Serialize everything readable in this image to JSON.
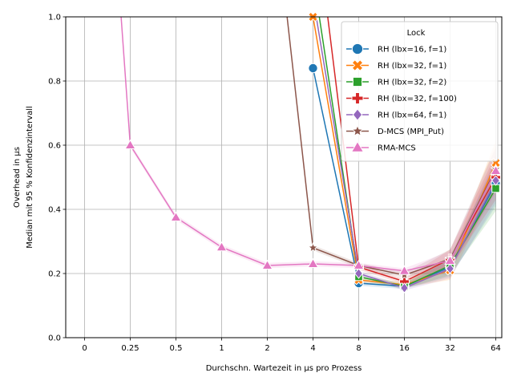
{
  "chart_data": {
    "type": "line",
    "title": "",
    "xlabel": "Durchschn. Wartezeit in µs pro Prozess",
    "ylabel_line1": "Overhead in µs",
    "ylabel_line2": "Median mit 95 % Konfidenzintervall",
    "categories": [
      "0",
      "0.25",
      "0.5",
      "1",
      "2",
      "4",
      "8",
      "16",
      "32",
      "64"
    ],
    "yticks": [
      "0.0",
      "0.2",
      "0.4",
      "0.6",
      "0.8",
      "1.0"
    ],
    "ylim": [
      0,
      1
    ],
    "grid": true,
    "legend_title": "Lock",
    "legend_placement": "top-right",
    "series": [
      {
        "name": "RH (lbx=16, f=1)",
        "color": "#1f77b4",
        "marker": "circle",
        "points": [
          [
            4,
            0.84
          ],
          [
            8,
            0.17
          ],
          [
            16,
            0.16
          ],
          [
            32,
            0.22
          ],
          [
            64,
            0.48
          ]
        ]
      },
      {
        "name": "RH (lbx=32, f=1)",
        "color": "#ff7f0e",
        "marker": "x",
        "points": [
          [
            4,
            1.0
          ],
          [
            8,
            0.18
          ],
          [
            16,
            0.165
          ],
          [
            32,
            0.21
          ],
          [
            64,
            0.545
          ]
        ]
      },
      {
        "name": "RH (lbx=32, f=2)",
        "color": "#2ca02c",
        "marker": "square",
        "points": [
          [
            4.4,
            1.0
          ],
          [
            8,
            0.19
          ],
          [
            16,
            0.16
          ],
          [
            32,
            0.225
          ],
          [
            64,
            0.465
          ]
        ]
      },
      {
        "name": "RH (lbx=32, f=100)",
        "color": "#d62728",
        "marker": "plus",
        "points": [
          [
            5.0,
            1.0
          ],
          [
            8,
            0.22
          ],
          [
            16,
            0.175
          ],
          [
            32,
            0.245
          ],
          [
            64,
            0.5
          ]
        ]
      },
      {
        "name": "RH (lbx=64, f=1)",
        "color": "#9467bd",
        "marker": "diamond",
        "points": [
          [
            4.2,
            1.0
          ],
          [
            8,
            0.2
          ],
          [
            16,
            0.155
          ],
          [
            32,
            0.215
          ],
          [
            64,
            0.49
          ]
        ]
      },
      {
        "name": "D-MCS (MPI_Put)",
        "color": "#8c564b",
        "marker": "star",
        "points": [
          [
            2.7,
            1.0
          ],
          [
            4,
            0.28
          ],
          [
            8,
            0.225
          ],
          [
            16,
            0.195
          ],
          [
            32,
            0.245
          ],
          [
            64,
            0.525
          ]
        ]
      },
      {
        "name": "RMA-MCS",
        "color": "#e377c2",
        "marker": "triangle",
        "points": [
          [
            0.2,
            1.0
          ],
          [
            0.25,
            0.6
          ],
          [
            0.5,
            0.375
          ],
          [
            1,
            0.282
          ],
          [
            2,
            0.225
          ],
          [
            4,
            0.23
          ],
          [
            8,
            0.225
          ],
          [
            16,
            0.208
          ],
          [
            32,
            0.24
          ],
          [
            64,
            0.52
          ]
        ]
      }
    ]
  }
}
